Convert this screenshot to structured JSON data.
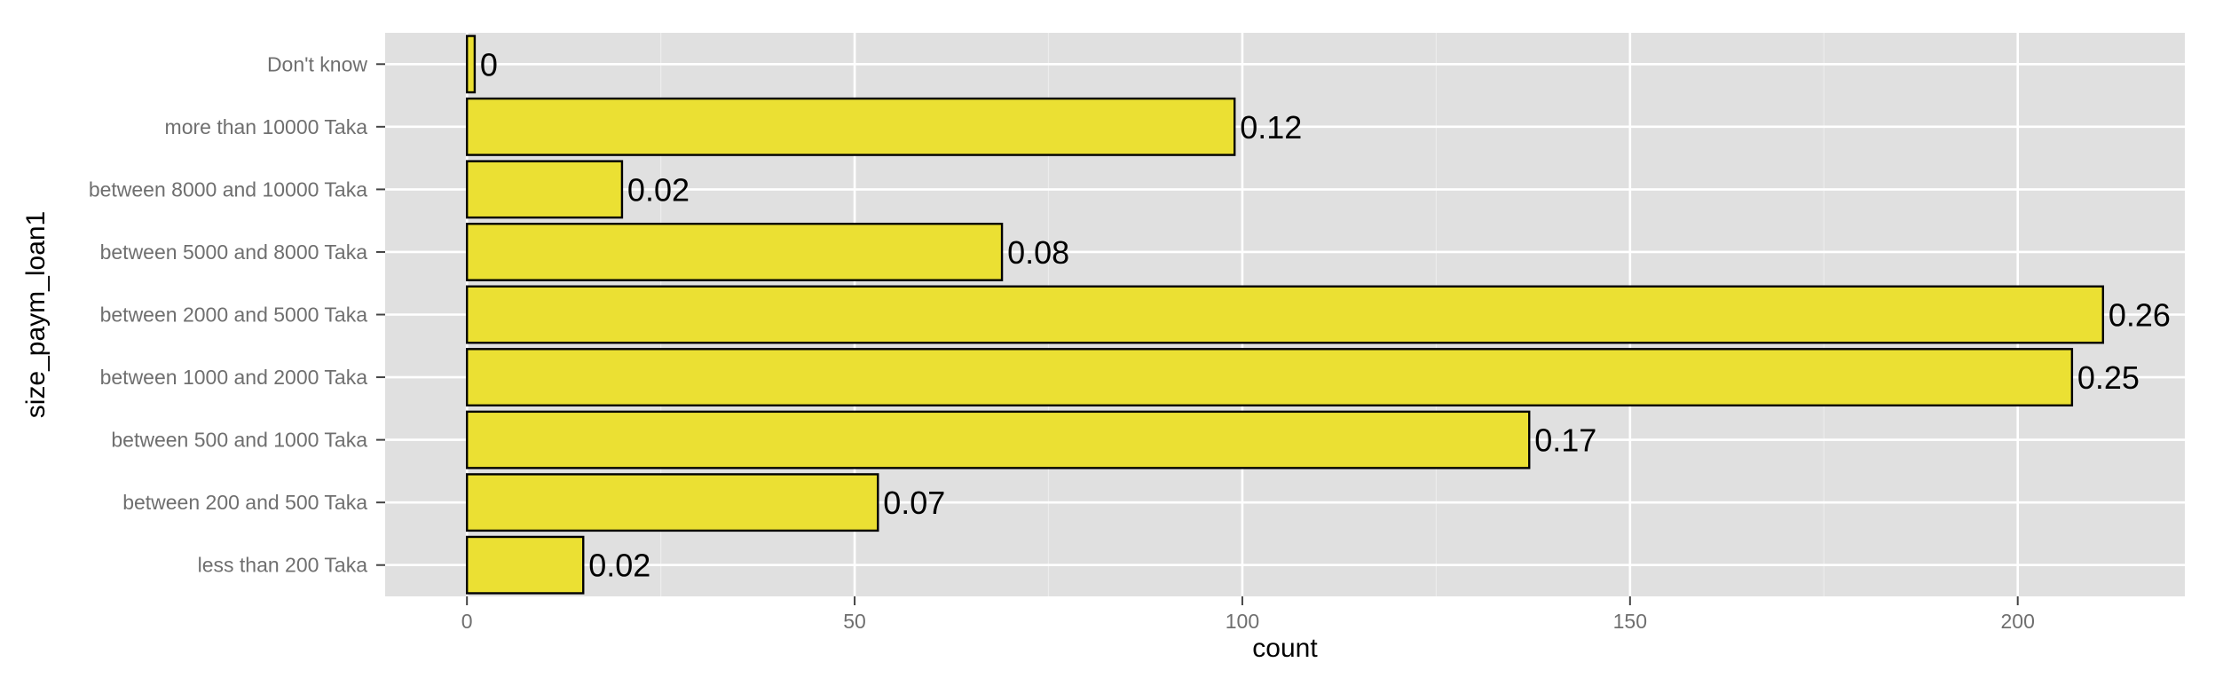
{
  "chart_data": {
    "type": "bar",
    "orientation": "horizontal",
    "xlabel": "count",
    "ylabel": "size_paym_loan1",
    "xlim": [
      -10.55,
      221.55
    ],
    "xticks": [
      0,
      50,
      100,
      150,
      200
    ],
    "grid": true,
    "legend": "none",
    "categories": [
      "less than 200 Taka",
      "between 200 and 500 Taka",
      "between 500 and 1000 Taka",
      "between 1000 and 2000 Taka",
      "between 2000 and 5000 Taka",
      "between 5000 and 8000 Taka",
      "between 8000 and 10000 Taka",
      "more than 10000 Taka",
      "Don't know"
    ],
    "values": [
      15,
      53,
      137,
      207,
      211,
      69,
      20,
      99,
      1
    ],
    "labels": [
      "0.02",
      "0.07",
      "0.17",
      "0.25",
      "0.26",
      "0.08",
      "0.02",
      "0.12",
      "0"
    ],
    "colors": {
      "bar_fill": "#ebe033",
      "bar_stroke": "#000000",
      "panel_bg": "#e0e0e0",
      "grid_major": "#ffffff",
      "grid_minor": "#ececec",
      "tick_text": "#6f6f6f",
      "axis_title": "#000000"
    }
  }
}
